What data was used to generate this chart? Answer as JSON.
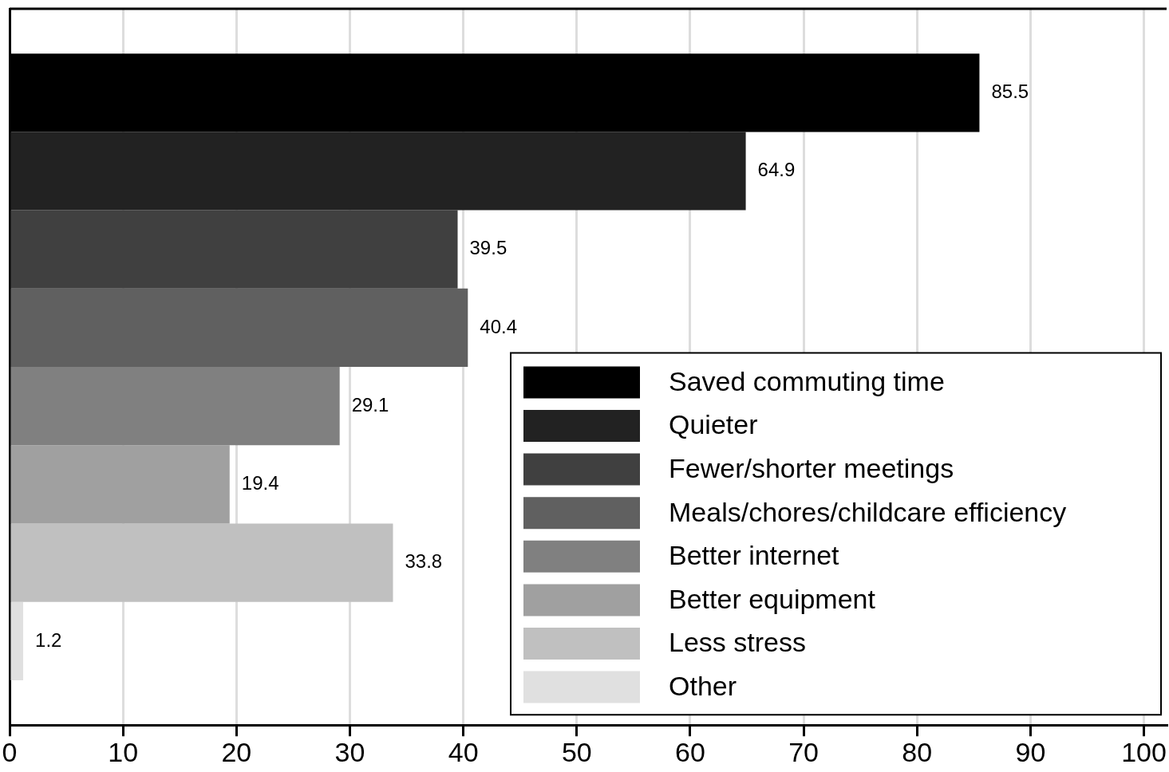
{
  "chart_data": {
    "type": "bar",
    "orientation": "horizontal",
    "categories": [
      null
    ],
    "series": [
      {
        "name": "Saved commuting time",
        "color": "#000000",
        "values": [
          85.5
        ]
      },
      {
        "name": "Quieter",
        "color": "#222222",
        "values": [
          64.9
        ]
      },
      {
        "name": "Fewer/shorter meetings",
        "color": "#404040",
        "values": [
          39.5
        ]
      },
      {
        "name": "Meals/chores/childcare efficiency",
        "color": "#606060",
        "values": [
          40.4
        ]
      },
      {
        "name": "Better internet",
        "color": "#808080",
        "values": [
          29.1
        ]
      },
      {
        "name": "Better equipment",
        "color": "#a0a0a0",
        "values": [
          19.4
        ]
      },
      {
        "name": "Less stress",
        "color": "#c0c0c0",
        "values": [
          33.8
        ]
      },
      {
        "name": "Other",
        "color": "#e0e0e0",
        "values": [
          1.2
        ]
      }
    ],
    "xlim": [
      0,
      102
    ],
    "xticks": [
      0,
      10,
      20,
      30,
      40,
      50,
      60,
      70,
      80,
      90,
      100
    ],
    "grid": "x",
    "data_labels": true,
    "legend": "bottom right"
  }
}
